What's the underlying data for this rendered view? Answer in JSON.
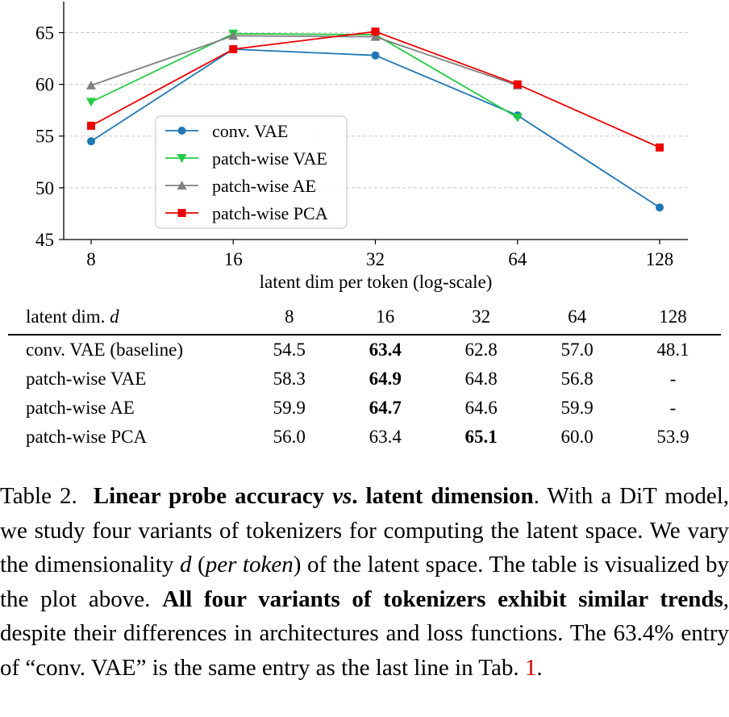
{
  "chart_data": {
    "type": "line",
    "x": [
      8,
      16,
      32,
      64,
      128
    ],
    "x_tick_labels": [
      "8",
      "16",
      "32",
      "64",
      "128"
    ],
    "xscale": "log",
    "xlabel": "latent dim per token (log-scale)",
    "ylabel": "",
    "title": "",
    "ylim": [
      45,
      68
    ],
    "y_ticks": [
      45,
      50,
      55,
      60,
      65
    ],
    "grid": "horizontal dashed",
    "legend_position": "center-left",
    "series": [
      {
        "name": "conv. VAE",
        "values": [
          54.5,
          63.4,
          62.8,
          57.0,
          48.1
        ],
        "color": "#1f77b4",
        "marker": "circle"
      },
      {
        "name": "patch-wise VAE",
        "values": [
          58.3,
          64.9,
          64.8,
          56.8,
          null
        ],
        "color": "#22cc44",
        "marker": "triangle-down"
      },
      {
        "name": "patch-wise AE",
        "values": [
          59.9,
          64.7,
          64.6,
          59.9,
          null
        ],
        "color": "#808080",
        "marker": "triangle-up"
      },
      {
        "name": "patch-wise PCA",
        "values": [
          56.0,
          63.4,
          65.1,
          60.0,
          53.9
        ],
        "color": "#ee0000",
        "marker": "square"
      }
    ]
  },
  "table": {
    "header_label": "latent dim.",
    "header_var": "d",
    "columns": [
      "8",
      "16",
      "32",
      "64",
      "128"
    ],
    "rows": [
      {
        "label": "conv. VAE (baseline)",
        "cells": [
          "54.5",
          "63.4",
          "62.8",
          "57.0",
          "48.1"
        ],
        "best": 1
      },
      {
        "label": "patch-wise VAE",
        "cells": [
          "58.3",
          "64.9",
          "64.8",
          "56.8",
          "-"
        ],
        "best": 1
      },
      {
        "label": "patch-wise AE",
        "cells": [
          "59.9",
          "64.7",
          "64.6",
          "59.9",
          "-"
        ],
        "best": 1
      },
      {
        "label": "patch-wise PCA",
        "cells": [
          "56.0",
          "63.4",
          "65.1",
          "60.0",
          "53.9"
        ],
        "best": 2
      }
    ]
  },
  "caption": {
    "prefix": "Table 2.",
    "title_a": "Linear probe accuracy",
    "title_vs": "vs",
    "title_b": ". latent dimension",
    "t1": ". With a DiT model, we study four variants of tokenizers for computing the latent space. We vary the dimensionality",
    "var": "d",
    "t2": "(",
    "per_token": "per token",
    "t3": ") of the latent space. The table is visualized by the plot above.",
    "bold2": "All four variants of tokenizers exhibit similar trends",
    "t4": ", despite their differences in architectures and loss functions. The 63.4% entry of “conv. VAE” is the same entry as the last line in Tab.",
    "ref": "1",
    "t5": "."
  }
}
